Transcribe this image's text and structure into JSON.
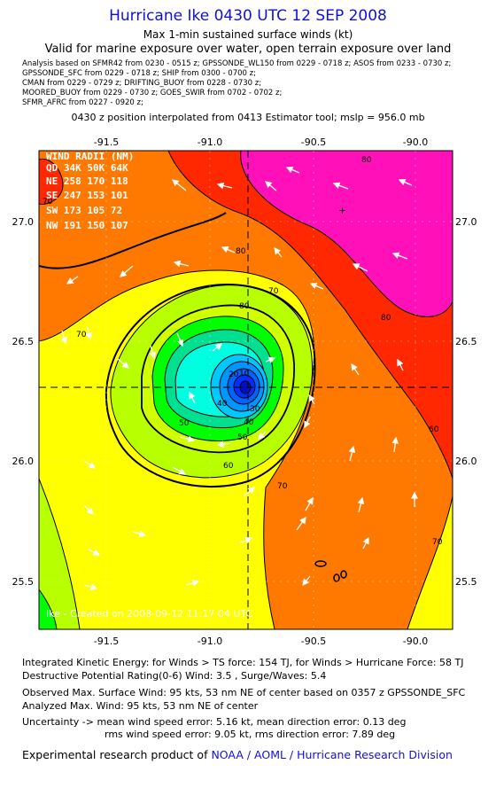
{
  "header": {
    "title": "Hurricane Ike 0430 UTC 12 SEP 2008",
    "subtitle": "Max 1-min sustained surface winds (kt)",
    "valid": "Valid for marine exposure over water, open terrain exposure over land",
    "sources": [
      "Analysis based on   SFMR42 from 0230 - 0515 z;  GPSSONDE_WL150 from 0229 - 0718 z;  ASOS from 0233 - 0730 z;",
      "GPSSONDE_SFC from 0229 - 0718 z;  SHIP from 0300 - 0700 z;",
      "CMAN from 0229 - 0729 z;  DRIFTING_BUOY from 0228 - 0730 z;",
      "MOORED_BUOY from 0229 - 0730 z;  GOES_SWIR from 0702 - 0702 z;",
      "SFMR_AFRC from 0227 - 0920 z;"
    ],
    "interpolation": "0430 z position interpolated from 0413 Estimator tool; mslp = 956.0 mb"
  },
  "map": {
    "lon_ticks": [
      "-91.5",
      "-91.0",
      "-90.5",
      "-90.0"
    ],
    "lat_ticks": [
      "27.0",
      "26.5",
      "26.0",
      "25.5"
    ],
    "center_lon": -90.82,
    "center_lat": 26.3,
    "contour_labels": [
      "80",
      "80",
      "80",
      "80",
      "70",
      "70",
      "70",
      "70",
      "70",
      "60",
      "60",
      "50",
      "50",
      "40",
      "40",
      "30",
      "20",
      "10"
    ],
    "wind_radii": {
      "title": "WIND RADII (NM)",
      "header": "QD  34K  50K  64K",
      "rows": [
        "NE  258  170  118",
        "SE  247  153  101",
        "SW  173  105   72",
        "NW  191  150  107"
      ]
    },
    "credit": "Ike  -  Created on 2008-09-12 11:17:04 UTC",
    "colors": {
      "magenta": "#ff10b8",
      "red": "#ff2800",
      "orange": "#ff7800",
      "yellow": "#ffff00",
      "yellow_green": "#b8ff00",
      "lime": "#00ff00",
      "cyan": "#00ffe0",
      "blue": "#0030ff"
    }
  },
  "footer": {
    "ike": "Integrated Kinetic Energy:  for Winds > TS force: 154 TJ,  for Winds > Hurricane Force: 58 TJ",
    "dpr": "Destructive Potential Rating(0-6)   Wind: 3.5 , Surge/Waves: 5.4",
    "observed": "Observed Max. Surface Wind: 95 kts, 53 nm NE of center based on 0357 z GPSSONDE_SFC",
    "analyzed": "Analyzed Max. Wind: 95 kts, 53 nm NE of center",
    "uncertainty1": "Uncertainty -> mean wind speed error: 5.16 kt,   mean direction error: 0.13 deg",
    "uncertainty2": "rms wind speed error: 9.05 kt,   rms direction error: 7.89 deg",
    "credit_prefix": "Experimental research product of ",
    "credit_link": "NOAA / AOML / Hurricane Research Division"
  }
}
